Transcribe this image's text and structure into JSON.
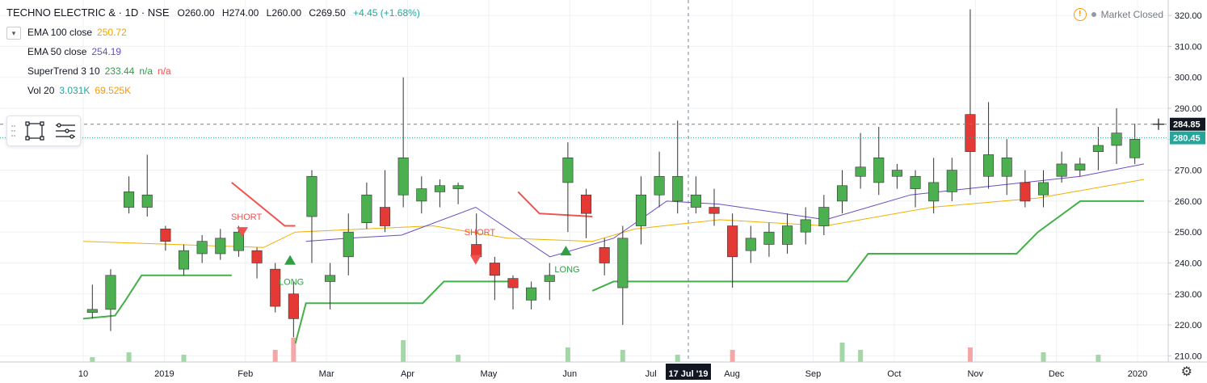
{
  "header": {
    "symbol": "TECHNO ELECTRIC & · 1D · NSE",
    "open": "O260.00",
    "high": "H274.00",
    "low": "L260.00",
    "close": "C269.50",
    "change": "+4.45 (+1.68%)",
    "market_status": "Market Closed"
  },
  "indicators": [
    {
      "label": "EMA 100 close",
      "values": [
        "250.72"
      ],
      "colors": [
        "#f0a500"
      ]
    },
    {
      "label": "EMA 50 close",
      "values": [
        "254.19"
      ],
      "colors": [
        "#6a4cc2"
      ]
    },
    {
      "label": "SuperTrend 3 10",
      "values": [
        "233.44",
        "n/a",
        "n/a"
      ],
      "colors": [
        "#2ea043",
        "#2ea043",
        "#ef5350"
      ]
    },
    {
      "label": "Vol 20",
      "values": [
        "3.031K",
        "69.525K"
      ],
      "colors": [
        "#26a69a",
        "#ff9800"
      ]
    }
  ],
  "price_axis": {
    "ticks": [
      "320.00",
      "310.00",
      "300.00",
      "290.00",
      "280.00",
      "270.00",
      "260.00",
      "250.00",
      "240.00",
      "230.00",
      "220.00",
      "210.00"
    ],
    "crosshair_label": "284.85",
    "last_price_label": "280.45"
  },
  "time_axis": {
    "labels": [
      "10",
      "2019",
      "Feb",
      "Mar",
      "Apr",
      "May",
      "Jun",
      "Jul",
      "Aug",
      "Sep",
      "Oct",
      "Nov",
      "Dec",
      "2020"
    ],
    "crosshair_label": "17 Jul '19"
  },
  "signals": [
    {
      "text": "SHORT",
      "color": "#ef5350"
    },
    {
      "text": "LONG",
      "color": "#2ea043"
    },
    {
      "text": "SHORT",
      "color": "#ef5350"
    },
    {
      "text": "LONG",
      "color": "#2ea043"
    }
  ],
  "colors": {
    "up_candle": "#4caf50",
    "down_candle": "#e53935",
    "ema100": "#f0b000",
    "ema50": "#6a4cc2",
    "supertrend_up": "#43b049",
    "supertrend_down": "#ef5350",
    "axis_label_bg": "#131722",
    "last_price_bg": "#26a69a"
  },
  "chart_data": {
    "type": "candlestick",
    "ylim": [
      208,
      325
    ],
    "x_labels": [
      "10",
      "2019",
      "Feb",
      "Mar",
      "Apr",
      "May",
      "Jun",
      "Jul",
      "Aug",
      "Sep",
      "Oct",
      "Nov",
      "Dec",
      "2020"
    ],
    "candles": [
      {
        "x": "Dec 10",
        "o": 224,
        "c": 225,
        "h": 233,
        "l": 222
      },
      {
        "x": "Dec 11",
        "o": 225,
        "c": 236,
        "h": 238,
        "l": 218
      },
      {
        "x": "Dec 24",
        "o": 258,
        "c": 263,
        "h": 268,
        "l": 256
      },
      {
        "x": "Dec 31",
        "o": 258,
        "c": 262,
        "h": 275,
        "l": 255
      },
      {
        "x": "Jan 02",
        "o": 251,
        "c": 247,
        "h": 252,
        "l": 244
      },
      {
        "x": "Jan 07",
        "o": 238,
        "c": 244,
        "h": 246,
        "l": 236
      },
      {
        "x": "Jan 14",
        "o": 243,
        "c": 247,
        "h": 249,
        "l": 240
      },
      {
        "x": "Jan 21",
        "o": 243,
        "c": 248,
        "h": 251,
        "l": 241
      },
      {
        "x": "Jan 28",
        "o": 244,
        "c": 250,
        "h": 252,
        "l": 242
      },
      {
        "x": "Feb 04",
        "o": 244,
        "c": 240,
        "h": 245,
        "l": 235
      },
      {
        "x": "Feb 11",
        "o": 238,
        "c": 226,
        "h": 240,
        "l": 224
      },
      {
        "x": "Feb 18",
        "o": 230,
        "c": 222,
        "h": 234,
        "l": 216
      },
      {
        "x": "Feb 25",
        "o": 255,
        "c": 268,
        "h": 270,
        "l": 240
      },
      {
        "x": "Mar 04",
        "o": 234,
        "c": 236,
        "h": 240,
        "l": 225
      },
      {
        "x": "Mar 11",
        "o": 242,
        "c": 250,
        "h": 256,
        "l": 236
      },
      {
        "x": "Mar 18",
        "o": 253,
        "c": 262,
        "h": 266,
        "l": 251
      },
      {
        "x": "Mar 25",
        "o": 258,
        "c": 252,
        "h": 270,
        "l": 250
      },
      {
        "x": "Apr 01",
        "o": 262,
        "c": 274,
        "h": 300,
        "l": 258
      },
      {
        "x": "Apr 08",
        "o": 260,
        "c": 264,
        "h": 268,
        "l": 256
      },
      {
        "x": "Apr 15",
        "o": 263,
        "c": 265,
        "h": 267,
        "l": 258
      },
      {
        "x": "Apr 22",
        "o": 264,
        "c": 265,
        "h": 266,
        "l": 259
      },
      {
        "x": "Apr 29",
        "o": 246,
        "c": 242,
        "h": 256,
        "l": 240
      },
      {
        "x": "May 06",
        "o": 240,
        "c": 236,
        "h": 242,
        "l": 228
      },
      {
        "x": "May 13",
        "o": 235,
        "c": 232,
        "h": 236,
        "l": 225
      },
      {
        "x": "May 20",
        "o": 228,
        "c": 232,
        "h": 234,
        "l": 225
      },
      {
        "x": "May 27",
        "o": 234,
        "c": 236,
        "h": 240,
        "l": 228
      },
      {
        "x": "Jun 03",
        "o": 266,
        "c": 274,
        "h": 279,
        "l": 250
      },
      {
        "x": "Jun 10",
        "o": 262,
        "c": 256,
        "h": 264,
        "l": 248
      },
      {
        "x": "Jun 17",
        "o": 245,
        "c": 240,
        "h": 248,
        "l": 236
      },
      {
        "x": "Jun 24",
        "o": 232,
        "c": 248,
        "h": 252,
        "l": 220
      },
      {
        "x": "Jul 01",
        "o": 252,
        "c": 262,
        "h": 268,
        "l": 246
      },
      {
        "x": "Jul 08",
        "o": 262,
        "c": 268,
        "h": 276,
        "l": 258
      },
      {
        "x": "Jul 15",
        "o": 260,
        "c": 268,
        "h": 286,
        "l": 256
      },
      {
        "x": "Jul 22",
        "o": 258,
        "c": 262,
        "h": 268,
        "l": 256
      },
      {
        "x": "Jul 29",
        "o": 258,
        "c": 256,
        "h": 264,
        "l": 252
      },
      {
        "x": "Aug 05",
        "o": 252,
        "c": 242,
        "h": 256,
        "l": 232
      },
      {
        "x": "Aug 12",
        "o": 244,
        "c": 248,
        "h": 252,
        "l": 240
      },
      {
        "x": "Aug 19",
        "o": 246,
        "c": 250,
        "h": 253,
        "l": 242
      },
      {
        "x": "Aug 26",
        "o": 246,
        "c": 252,
        "h": 256,
        "l": 243
      },
      {
        "x": "Sep 02",
        "o": 250,
        "c": 254,
        "h": 258,
        "l": 246
      },
      {
        "x": "Sep 09",
        "o": 252,
        "c": 258,
        "h": 262,
        "l": 249
      },
      {
        "x": "Sep 16",
        "o": 260,
        "c": 265,
        "h": 270,
        "l": 256
      },
      {
        "x": "Sep 23",
        "o": 268,
        "c": 271,
        "h": 282,
        "l": 264
      },
      {
        "x": "Sep 30",
        "o": 266,
        "c": 274,
        "h": 284,
        "l": 262
      },
      {
        "x": "Oct 07",
        "o": 268,
        "c": 270,
        "h": 272,
        "l": 264
      },
      {
        "x": "Oct 14",
        "o": 264,
        "c": 268,
        "h": 270,
        "l": 258
      },
      {
        "x": "Oct 21",
        "o": 260,
        "c": 266,
        "h": 274,
        "l": 256
      },
      {
        "x": "Oct 28",
        "o": 263,
        "c": 270,
        "h": 274,
        "l": 260
      },
      {
        "x": "Nov 01",
        "o": 288,
        "c": 276,
        "h": 322,
        "l": 262
      },
      {
        "x": "Nov 08",
        "o": 268,
        "c": 275,
        "h": 292,
        "l": 264
      },
      {
        "x": "Nov 15",
        "o": 268,
        "c": 274,
        "h": 280,
        "l": 262
      },
      {
        "x": "Nov 22",
        "o": 266,
        "c": 260,
        "h": 270,
        "l": 258
      },
      {
        "x": "Nov 29",
        "o": 262,
        "c": 266,
        "h": 270,
        "l": 258
      },
      {
        "x": "Dec 06",
        "o": 268,
        "c": 272,
        "h": 276,
        "l": 266
      },
      {
        "x": "Dec 13",
        "o": 270,
        "c": 272,
        "h": 274,
        "l": 268
      },
      {
        "x": "Dec 20",
        "o": 276,
        "c": 278,
        "h": 284,
        "l": 270
      },
      {
        "x": "Dec 27",
        "o": 278,
        "c": 282,
        "h": 290,
        "l": 272
      },
      {
        "x": "Jan 02",
        "o": 274,
        "c": 280,
        "h": 285,
        "l": 272
      }
    ],
    "ema100": [
      [
        0,
        247
      ],
      [
        0.17,
        245
      ],
      [
        0.2,
        250
      ],
      [
        0.33,
        252
      ],
      [
        0.4,
        248
      ],
      [
        0.48,
        247
      ],
      [
        0.52,
        251
      ],
      [
        0.6,
        254
      ],
      [
        0.7,
        252
      ],
      [
        0.8,
        258
      ],
      [
        0.9,
        261
      ],
      [
        1,
        267
      ]
    ],
    "ema50": [
      [
        0.21,
        247
      ],
      [
        0.25,
        248
      ],
      [
        0.3,
        249
      ],
      [
        0.37,
        258
      ],
      [
        0.44,
        242
      ],
      [
        0.5,
        248
      ],
      [
        0.55,
        260
      ],
      [
        0.6,
        259
      ],
      [
        0.7,
        254
      ],
      [
        0.78,
        262
      ],
      [
        0.86,
        265
      ],
      [
        0.94,
        268
      ],
      [
        1,
        272
      ]
    ],
    "supertrend": [
      {
        "dir": "up",
        "points": [
          [
            0,
            222
          ],
          [
            0.03,
            223
          ],
          [
            0.04,
            228
          ],
          [
            0.055,
            236
          ],
          [
            0.14,
            236
          ]
        ]
      },
      {
        "dir": "down",
        "points": [
          [
            0.14,
            266
          ],
          [
            0.19,
            252
          ],
          [
            0.2,
            252
          ]
        ]
      },
      {
        "dir": "up",
        "points": [
          [
            0.2,
            214
          ],
          [
            0.21,
            227
          ],
          [
            0.32,
            227
          ],
          [
            0.34,
            234
          ],
          [
            0.41,
            234
          ]
        ]
      },
      {
        "dir": "down",
        "points": [
          [
            0.41,
            263
          ],
          [
            0.43,
            256
          ],
          [
            0.48,
            255
          ]
        ]
      },
      {
        "dir": "up",
        "points": [
          [
            0.48,
            231
          ],
          [
            0.5,
            234
          ],
          [
            0.72,
            234
          ],
          [
            0.74,
            243
          ],
          [
            0.88,
            243
          ],
          [
            0.9,
            250
          ],
          [
            0.94,
            260
          ],
          [
            1,
            260
          ]
        ]
      }
    ],
    "volume": [
      {
        "i": 0,
        "v": 0.2
      },
      {
        "i": 2,
        "v": 0.4
      },
      {
        "i": 5,
        "v": 0.3
      },
      {
        "i": 10,
        "v": 0.5
      },
      {
        "i": 11,
        "v": 1.0
      },
      {
        "i": 17,
        "v": 0.9
      },
      {
        "i": 20,
        "v": 0.3
      },
      {
        "i": 26,
        "v": 0.6
      },
      {
        "i": 29,
        "v": 0.5
      },
      {
        "i": 32,
        "v": 0.3
      },
      {
        "i": 35,
        "v": 0.5
      },
      {
        "i": 41,
        "v": 0.8
      },
      {
        "i": 42,
        "v": 0.5
      },
      {
        "i": 48,
        "v": 0.6
      },
      {
        "i": 52,
        "v": 0.4
      },
      {
        "i": 55,
        "v": 0.3
      }
    ]
  }
}
